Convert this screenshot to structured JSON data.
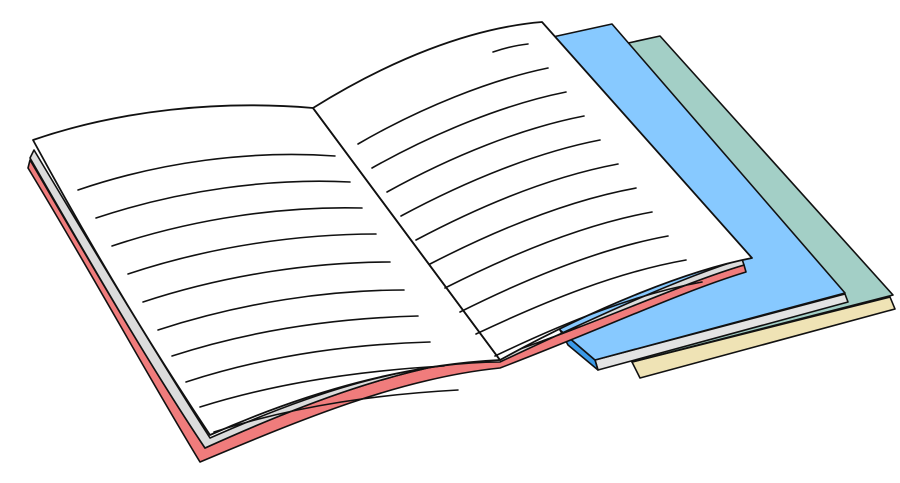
{
  "illustration": {
    "subject": "open-notebook-with-stacked-closed-notebooks",
    "colors": {
      "background": "#ffffff",
      "outline": "#111111",
      "page": "#ffffff",
      "page_edge": "#d9d9d9",
      "open_cover": "#f07c7c",
      "open_cover_dark": "#d95a5a",
      "blue_cover": "#87c9ff",
      "blue_spine": "#3a9ae8",
      "green_cover": "#a3cfc6",
      "cream_edge": "#efe3b5"
    },
    "books": [
      {
        "name": "green-notebook",
        "state": "closed"
      },
      {
        "name": "blue-notebook",
        "state": "closed"
      },
      {
        "name": "red-notebook",
        "state": "open"
      }
    ],
    "ruled_lines": {
      "left_page": 10,
      "right_page": 11
    }
  }
}
